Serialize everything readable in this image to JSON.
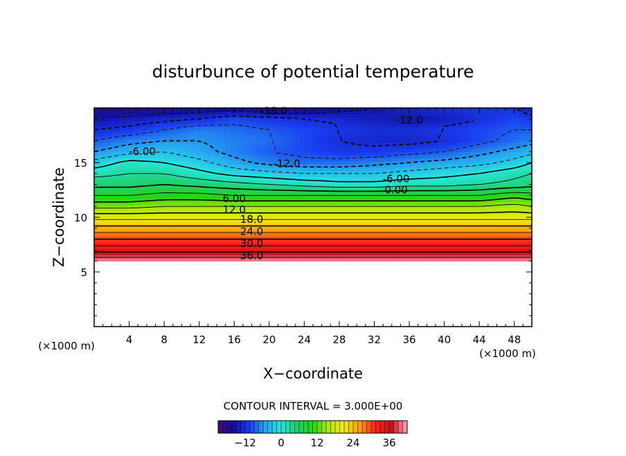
{
  "chart_data": {
    "type": "heatmap",
    "title": "disturbunce of potential temperature",
    "xlabel": "X−coordinate",
    "ylabel": "Z−coordinate",
    "x_unit_left": "(×1000 m)",
    "x_unit_right": "(×1000 m)",
    "xlim": [
      0,
      50
    ],
    "ylim": [
      0,
      20
    ],
    "xticks": [
      4,
      8,
      12,
      16,
      20,
      24,
      28,
      32,
      36,
      40,
      44,
      48
    ],
    "yticks": [
      5,
      10,
      15
    ],
    "contour_interval_text": "CONTOUR INTERVAL = 3.000E+00",
    "contour_interval": 3,
    "colorbar": {
      "range": [
        -21,
        42
      ],
      "ticks": [
        -12,
        0,
        12,
        24,
        36
      ],
      "colors": [
        "#4a0a6e",
        "#1010a0",
        "#1a3cf0",
        "#26a6f2",
        "#26e6dc",
        "#1fcf6a",
        "#22d612",
        "#aee80c",
        "#f2ec0c",
        "#ff9c0c",
        "#ff1e1e",
        "#c81414",
        "#ffa8c0"
      ]
    },
    "field": {
      "x": [
        0,
        4,
        8,
        12,
        16,
        20,
        24,
        28,
        32,
        36,
        40,
        44,
        48,
        50
      ],
      "z": [
        20,
        19,
        18,
        17,
        16,
        15,
        14,
        13,
        12,
        11,
        10,
        9,
        8,
        7,
        6.5,
        6
      ],
      "values": [
        [
          -18,
          -18,
          -18,
          -17,
          -17,
          -18,
          -18,
          -16,
          -15,
          -13,
          -12,
          -11,
          -12,
          -14
        ],
        [
          -15,
          -14,
          -13,
          -12,
          -10,
          -11,
          -12,
          -13,
          -14,
          -15,
          -14,
          -12,
          -10,
          -11
        ],
        [
          -12,
          -11,
          -9,
          -7,
          -8,
          -9,
          -10,
          -11,
          -12,
          -12,
          -11,
          -10,
          -9,
          -9
        ],
        [
          -9,
          -7,
          -6,
          -6,
          -7,
          -8,
          -10,
          -12,
          -13,
          -13,
          -12,
          -10,
          -8,
          -7
        ],
        [
          -6,
          -4,
          -3,
          -5,
          -7,
          -9,
          -10,
          -11,
          -11,
          -10,
          -9,
          -7,
          -5,
          -4
        ],
        [
          -2,
          1,
          0,
          -2,
          -5,
          -7,
          -8,
          -8,
          -7,
          -6,
          -5,
          -4,
          -2,
          0
        ],
        [
          2,
          3,
          3,
          1,
          -1,
          -2,
          -3,
          -3,
          -3,
          -2,
          -1,
          0,
          2,
          3
        ],
        [
          5,
          5,
          6,
          5,
          4,
          3,
          2,
          1,
          1,
          2,
          2,
          3,
          4,
          5
        ],
        [
          9,
          9,
          10,
          10,
          9,
          9,
          9,
          9,
          9,
          9,
          9,
          9,
          11,
          10
        ],
        [
          14,
          14,
          15,
          15,
          15,
          15,
          15,
          15,
          15,
          15,
          15,
          15,
          16,
          15
        ],
        [
          20,
          20,
          20,
          20,
          20,
          20,
          20,
          20,
          20,
          20,
          20,
          20,
          20,
          20
        ],
        [
          25,
          25,
          25,
          25,
          25,
          25,
          25,
          25,
          25,
          25,
          25,
          25,
          25,
          25
        ],
        [
          30,
          30,
          30,
          30,
          30,
          30,
          30,
          30,
          30,
          30,
          30,
          30,
          30,
          30
        ],
        [
          35,
          35,
          35,
          35,
          35,
          35,
          35,
          35,
          35,
          35,
          35,
          35,
          35,
          35
        ],
        [
          38,
          38,
          38,
          38,
          38,
          38,
          38,
          38,
          38,
          38,
          38,
          38,
          38,
          38
        ],
        [
          41,
          41,
          41,
          41,
          41,
          41,
          41,
          41,
          41,
          41,
          41,
          41,
          41,
          41
        ]
      ]
    },
    "annotations": [
      {
        "text": "-18.0",
        "x": 20.5,
        "z": 19.7
      },
      {
        "text": "-12.0",
        "x": 36,
        "z": 18.9
      },
      {
        "text": "-6.00",
        "x": 5.5,
        "z": 16.0
      },
      {
        "text": "-12.0",
        "x": 22,
        "z": 14.9
      },
      {
        "text": "-6.00",
        "x": 34.5,
        "z": 13.5
      },
      {
        "text": "0.00",
        "x": 34.5,
        "z": 12.5
      },
      {
        "text": "6.00",
        "x": 16,
        "z": 11.7
      },
      {
        "text": "12.0",
        "x": 16,
        "z": 10.7
      },
      {
        "text": "18.0",
        "x": 18,
        "z": 9.8
      },
      {
        "text": "24.0",
        "x": 18,
        "z": 8.7
      },
      {
        "text": "30.0",
        "x": 18,
        "z": 7.6
      },
      {
        "text": "36.0",
        "x": 18,
        "z": 6.5
      }
    ]
  }
}
